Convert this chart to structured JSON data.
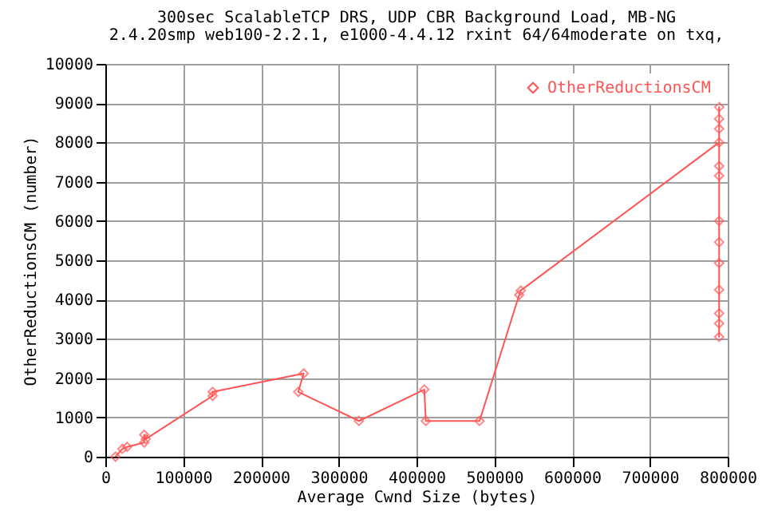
{
  "chart_data": {
    "type": "line",
    "title": "300sec ScalableTCP DRS, UDP CBR Background Load, MB-NG",
    "subtitle": "2.4.20smp web100-2.2.1, e1000-4.4.12 rxint 64/64moderate on txq,",
    "xlabel": "Average Cwnd Size (bytes)",
    "ylabel": "OtherReductionsCM (number)",
    "x": [
      13000,
      22000,
      28000,
      50000,
      50000,
      52000,
      138000,
      138000,
      255000,
      248000,
      326000,
      410000,
      412000,
      481000,
      532000,
      534000,
      789000,
      789000,
      789000,
      789000,
      789000,
      789000,
      789000,
      789000,
      789000,
      789000,
      789000,
      789000,
      789000
    ],
    "series": [
      {
        "name": "OtherReductionsCM",
        "color": "#ff5555",
        "values": [
          0,
          200,
          250,
          360,
          560,
          450,
          1550,
          1650,
          2120,
          1650,
          910,
          1710,
          910,
          910,
          4120,
          4230,
          8000,
          8900,
          8350,
          7400,
          7150,
          6000,
          5460,
          4930,
          4250,
          3650,
          3390,
          3050,
          8600
        ]
      }
    ],
    "xlim": [
      0,
      800000
    ],
    "xticks": [
      0,
      100000,
      200000,
      300000,
      400000,
      500000,
      600000,
      700000,
      800000
    ],
    "ylim": [
      0,
      10000
    ],
    "yticks": [
      0,
      1000,
      2000,
      3000,
      4000,
      5000,
      6000,
      7000,
      8000,
      9000,
      10000
    ],
    "grid": true,
    "legend": "top right",
    "marker": "diamond",
    "line_style": "solid"
  }
}
